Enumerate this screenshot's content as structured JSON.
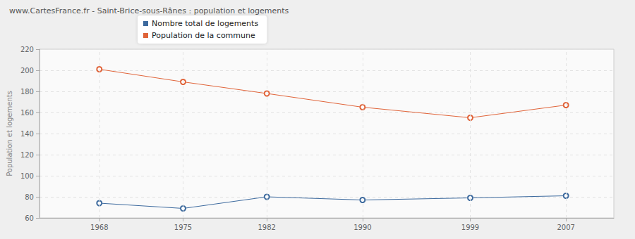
{
  "chart_data": {
    "type": "line",
    "title": "www.CartesFrance.fr - Saint-Brice-sous-Rânes : population et logements",
    "y_label": "Population et logements",
    "x": [
      1968,
      1975,
      1982,
      1990,
      1999,
      2007
    ],
    "xlim": [
      1963,
      2011
    ],
    "xticks": [
      1968,
      1975,
      1982,
      1990,
      1999,
      2007
    ],
    "ylim": [
      60,
      220
    ],
    "yticks": [
      60,
      80,
      100,
      120,
      140,
      160,
      180,
      200,
      220
    ],
    "grid": true,
    "legend": "top-left",
    "marker": "circle",
    "series": [
      {
        "name": "Nombre total de logements",
        "color": "#3d6a9e",
        "values": [
          74,
          69,
          80,
          77,
          79,
          81
        ]
      },
      {
        "name": "Population de la commune",
        "color": "#e0643a",
        "values": [
          201,
          189,
          178,
          165,
          155,
          167
        ]
      }
    ]
  }
}
